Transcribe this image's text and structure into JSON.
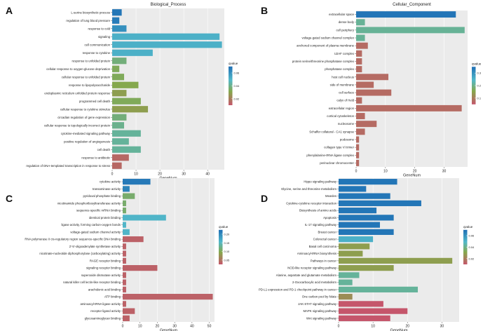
{
  "chart_data": [
    {
      "panel": "A",
      "type": "bar",
      "orientation": "horizontal",
      "title": "Biological_Process",
      "xlabel": "GeneNum",
      "xlim": [
        0,
        47
      ],
      "xticks": [
        0,
        10,
        20,
        30,
        40
      ],
      "legend": {
        "title": "qvalue",
        "ticks": [
          "0.06",
          "0.04",
          "0.02"
        ],
        "qmin": 0.005,
        "qmax": 0.07
      },
      "categories": [
        "L-serine biosynthetic process",
        "regulation of lung blood pressure",
        "response to cold",
        "signaling",
        "cell communication",
        "response to cytokine",
        "response to unfolded protein",
        "cellular response to oxygen-glucose deprivation",
        "cellular response to unfolded protein",
        "response to lipopolysaccharide",
        "endoplasmic reticulum unfolded protein response",
        "programmed cell death",
        "cellular response to cytokine stimulus",
        "circadian regulation of gene expression",
        "cellular response to topologically incorrect protein",
        "cytokine-mediated signaling pathway",
        "positive regulation of angiogenesis",
        "cell death",
        "response to antibiotic",
        "regulation of DNA-templated transcription in response to stress"
      ],
      "values": [
        4,
        3,
        6,
        45,
        46,
        17,
        6,
        3,
        5,
        11,
        6,
        12,
        15,
        6,
        5,
        12,
        7,
        12,
        7,
        4
      ],
      "qvalues": [
        0.068,
        0.066,
        0.06,
        0.05,
        0.05,
        0.05,
        0.035,
        0.03,
        0.03,
        0.028,
        0.025,
        0.03,
        0.025,
        0.035,
        0.038,
        0.04,
        0.04,
        0.04,
        0.01,
        0.01
      ]
    },
    {
      "panel": "B",
      "type": "bar",
      "orientation": "horizontal",
      "title": "Cellular_Component",
      "xlabel": "GeneNum",
      "xlim": [
        0,
        38
      ],
      "xticks": [
        0,
        10,
        20,
        30
      ],
      "legend": {
        "title": "qvalue",
        "ticks": [
          "0.3",
          "0.2",
          "0.1"
        ],
        "qmin": 0.02,
        "qmax": 0.36
      },
      "categories": [
        "extracellular space",
        "dense body",
        "cell periphery",
        "voltage-gated sodium channel complex",
        "anchored component of plasma membrane",
        "U2AF complex",
        "protein serine/threonine phosphatase complex",
        "phosphatase complex",
        "host cell nucleus",
        "side of membrane",
        "cell surface",
        "calyx of Held",
        "extracellular region",
        "cortical cytoskeleton",
        "nucleosome",
        "Schaffer collateral - CA1 synapse",
        "podosome",
        "collagen type VI trimer",
        "phenylalanine-tRNA ligase complex",
        "perinuclear chromocenter"
      ],
      "values": [
        34,
        3,
        37,
        3,
        4,
        2,
        2,
        2,
        11,
        6,
        12,
        2,
        36,
        3,
        7,
        3,
        1,
        1,
        1,
        1
      ],
      "qvalues": [
        0.35,
        0.2,
        0.2,
        0.2,
        0.05,
        0.05,
        0.05,
        0.05,
        0.05,
        0.05,
        0.05,
        0.05,
        0.05,
        0.05,
        0.05,
        0.05,
        0.05,
        0.05,
        0.05,
        0.05
      ]
    },
    {
      "panel": "C",
      "type": "bar",
      "orientation": "horizontal",
      "title": "Molecular_Function",
      "xlabel": "GeneNum",
      "xlim": [
        0,
        53
      ],
      "xticks": [
        0,
        10,
        20,
        30,
        40,
        50
      ],
      "legend": {
        "title": "qvalue",
        "ticks": [
          "0.20",
          "0.15",
          "0.10",
          "0.05"
        ],
        "qmin": 0.01,
        "qmax": 0.22
      },
      "categories": [
        "cytokine activity",
        "transaminase activity",
        "pyridoxal phosphate binding",
        "nicotinamide phosphoribosyltransferase activity",
        "sequence-specific mRNA binding",
        "identical protein binding",
        "ligase activity, forming carbon-oxygen bonds",
        "voltage-gated sodium channel activity",
        "RNA polymerase II cis-regulatory region sequence-specific DNA binding",
        "2'-5'-oligoadenylate synthetase activity",
        "nicotinate-nucleotide diphosphorylase (carboxylating) activity",
        "RAGE receptor binding",
        "signaling receptor binding",
        "superoxide dismutase activity",
        "natural killer cell lectin-like receptor binding",
        "arachidonic acid binding",
        "ATP binding",
        "aminoacyl-tRNA ligase activity",
        "receptor ligand activity",
        "glycosaminoglycan binding"
      ],
      "values": [
        16,
        4,
        7,
        2,
        2,
        25,
        2,
        4,
        12,
        2,
        2,
        2,
        20,
        2,
        2,
        2,
        52,
        2,
        7,
        4
      ],
      "qvalues": [
        0.21,
        0.2,
        0.1,
        0.1,
        0.1,
        0.15,
        0.15,
        0.15,
        0.02,
        0.02,
        0.02,
        0.02,
        0.02,
        0.02,
        0.02,
        0.02,
        0.02,
        0.02,
        0.02,
        0.02
      ]
    },
    {
      "panel": "D",
      "type": "bar",
      "orientation": "horizontal",
      "title": "KEGG_pathway",
      "xlabel": "GeneNum",
      "xlim": [
        0,
        35
      ],
      "xticks": [
        0,
        10,
        20,
        30
      ],
      "legend": {
        "title": "qvalue",
        "ticks": [
          "0.06",
          "0.04",
          "0.02"
        ],
        "qmin": 0.005,
        "qmax": 0.07
      },
      "categories": [
        "Hippo signaling pathway",
        "Glycine, serine and threonine metabolism",
        "Measles",
        "Cytokine-cytokine receptor interaction",
        "Biosynthesis of amino acids",
        "Apoptosis",
        "IL-17 signaling pathway",
        "Breast cancer",
        "Colorectal cancer",
        "Basal cell carcinoma",
        "Aminoacyl-tRNA biosynthesis",
        "Pathways in cancer",
        "NOD-like receptor signaling pathway",
        "Alanine, aspartate and glutamate metabolism",
        "2-Oxocarboxylic acid metabolism",
        "PD-L1 expression and PD-1 checkpoint pathway in cancer",
        "One carbon pool by folate",
        "JAK-STAT signaling pathway",
        "MAPK signaling pathway",
        "Wnt signaling pathway"
      ],
      "values": [
        17,
        8,
        15,
        24,
        11,
        16,
        12,
        16,
        10,
        9,
        7,
        33,
        16,
        6,
        4,
        23,
        4,
        13,
        20,
        15
      ],
      "qvalues": [
        0.068,
        0.068,
        0.068,
        0.068,
        0.068,
        0.068,
        0.068,
        0.068,
        0.05,
        0.025,
        0.025,
        0.025,
        0.025,
        0.04,
        0.04,
        0.04,
        0.02,
        0.005,
        0.005,
        0.005
      ]
    }
  ]
}
